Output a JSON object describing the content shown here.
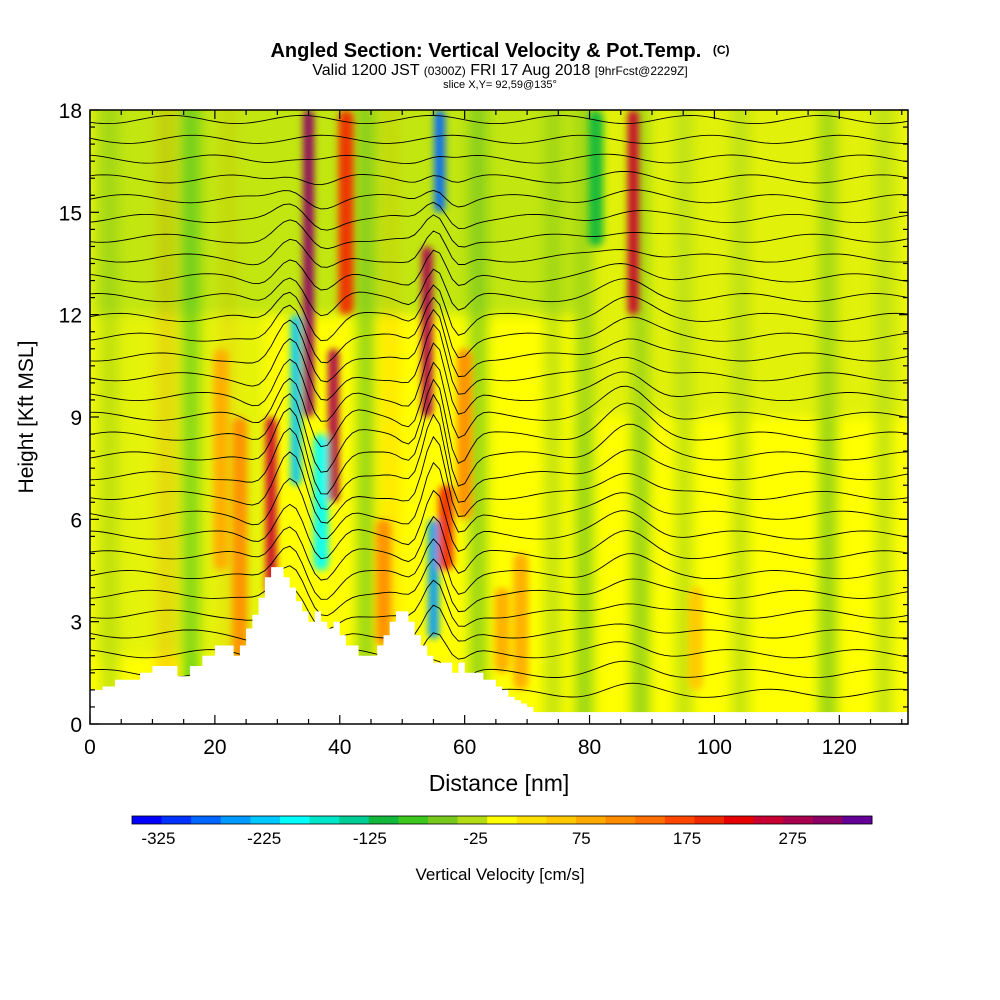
{
  "chart_data": {
    "type": "heatmap",
    "title": "Angled Section: Vertical Velocity & Pot.Temp.",
    "title_unit": "(C)",
    "subtitle_parts": [
      {
        "text": "Valid 1200 JST ",
        "size": "large"
      },
      {
        "text": "(0300Z)",
        "size": "small"
      },
      {
        "text": " FRI 17 Aug 2018 ",
        "size": "large"
      },
      {
        "text": "[9hrFcst@2229Z]",
        "size": "small"
      }
    ],
    "slice_text": "slice X,Y= 92,59@135°",
    "xlabel": "Distance [nm]",
    "ylabel": "Height [Kft MSL]",
    "xlim": [
      0,
      131
    ],
    "ylim": [
      0,
      18
    ],
    "x_ticks": [
      0,
      20,
      40,
      60,
      80,
      100,
      120
    ],
    "y_ticks": [
      0,
      3,
      6,
      9,
      12,
      15,
      18
    ],
    "colorbar": {
      "label": "Vertical Velocity [cm/s]",
      "min": -350,
      "max": 350,
      "tick_labels": [
        "-325",
        "-225",
        "-125",
        "-25",
        "75",
        "175",
        "275"
      ],
      "tick_values": [
        -325,
        -225,
        -125,
        -25,
        75,
        175,
        275
      ],
      "colors": [
        "#0000ff",
        "#0033ff",
        "#0066ff",
        "#0099ff",
        "#00c8ff",
        "#00ffff",
        "#00e6c8",
        "#00cc96",
        "#11b83c",
        "#3cc81e",
        "#78c81e",
        "#b4dc14",
        "#ffff00",
        "#ffe100",
        "#ffc800",
        "#ffaa00",
        "#ff8c00",
        "#ff6e00",
        "#ff4600",
        "#f02800",
        "#e60000",
        "#c80032",
        "#aa0050",
        "#8c0064",
        "#640096"
      ]
    },
    "velocity_features": [
      {
        "x": 21,
        "y0": 4.5,
        "y1": 11,
        "value": 80
      },
      {
        "x": 24,
        "y0": 1.8,
        "y1": 9,
        "value": 110
      },
      {
        "x": 29,
        "y0": 3.8,
        "y1": 9,
        "value": 260
      },
      {
        "x": 35,
        "y0": 9,
        "y1": 18,
        "value": 310
      },
      {
        "x": 33,
        "y0": 7,
        "y1": 12,
        "value": -230
      },
      {
        "x": 37,
        "y0": 4.5,
        "y1": 8.5,
        "value": -200
      },
      {
        "x": 39,
        "y0": 6.5,
        "y1": 11,
        "value": 270
      },
      {
        "x": 41,
        "y0": 12,
        "y1": 18,
        "value": 200
      },
      {
        "x": 47,
        "y0": 2.3,
        "y1": 6,
        "value": 110
      },
      {
        "x": 55,
        "y0": 2.5,
        "y1": 6,
        "value": -260
      },
      {
        "x": 54,
        "y0": 9,
        "y1": 14,
        "value": 290
      },
      {
        "x": 57,
        "y0": 4.5,
        "y1": 7,
        "value": 200
      },
      {
        "x": 56,
        "y0": 15,
        "y1": 18,
        "value": -290
      },
      {
        "x": 60,
        "y0": 6,
        "y1": 11,
        "value": 120
      },
      {
        "x": 66,
        "y0": 1.5,
        "y1": 4,
        "value": 90
      },
      {
        "x": 69,
        "y0": 1,
        "y1": 5,
        "value": 80
      },
      {
        "x": 81,
        "y0": 14,
        "y1": 18,
        "value": -120
      },
      {
        "x": 87,
        "y0": 12,
        "y1": 18,
        "value": 240
      },
      {
        "x": 97,
        "y0": 1,
        "y1": 4,
        "value": 55
      }
    ],
    "terrain": {
      "x": [
        0,
        2,
        4,
        6,
        8,
        10,
        12,
        14,
        16,
        18,
        20,
        22,
        23,
        24,
        25,
        26,
        27,
        28,
        29,
        30,
        31,
        32,
        33,
        34,
        35,
        36,
        37,
        38,
        39,
        40,
        41,
        42,
        43,
        44,
        45,
        46,
        47,
        48,
        49,
        50,
        51,
        52,
        53,
        54,
        55,
        56,
        57,
        58,
        59,
        60,
        61,
        62,
        63,
        64,
        65,
        66,
        67,
        68,
        69,
        70,
        71,
        72,
        80,
        90,
        100,
        110,
        120,
        131
      ],
      "height_kft": [
        1.0,
        1.1,
        1.3,
        1.3,
        1.5,
        1.7,
        1.7,
        1.4,
        1.7,
        2.0,
        2.3,
        2.3,
        2.0,
        2.3,
        2.8,
        3.2,
        3.7,
        4.3,
        4.6,
        4.6,
        4.3,
        4.0,
        3.6,
        3.3,
        3.0,
        3.3,
        3.0,
        2.8,
        3.0,
        2.6,
        2.3,
        2.3,
        2.0,
        2.0,
        2.0,
        2.3,
        2.6,
        3.0,
        3.3,
        3.3,
        3.0,
        2.6,
        2.3,
        2.0,
        1.8,
        1.8,
        1.8,
        1.5,
        1.8,
        1.5,
        1.5,
        1.5,
        1.3,
        1.3,
        1.1,
        1.0,
        0.8,
        0.7,
        0.6,
        0.5,
        0.35,
        0.35,
        0.35,
        0.35,
        0.35,
        0.35,
        0.35,
        0.35
      ]
    }
  }
}
